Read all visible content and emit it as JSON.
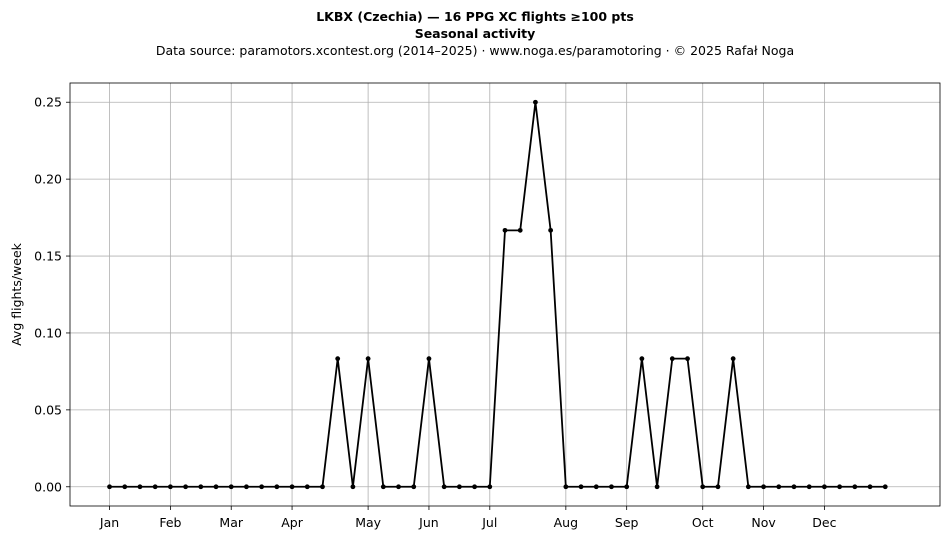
{
  "title": "LKBX (Czechia)  —  16 PPG XC flights ≥100 pts",
  "subtitle": "Seasonal activity",
  "source_note": "Data source: paramotors.xcontest.org (2014–2025)  ·  www.noga.es/paramotoring  ·  © 2025 Rafał Noga",
  "chart_data": {
    "type": "line",
    "title": "LKBX (Czechia)  —  16 PPG XC flights ≥100 pts",
    "subtitle": "Seasonal activity",
    "xlabel": "",
    "ylabel": "Avg flights/week",
    "x_unit": "week of year",
    "xlim": [
      -2.6,
      54.6
    ],
    "ylim": [
      -0.0125,
      0.2625
    ],
    "grid": true,
    "month_ticks": [
      {
        "label": "Jan",
        "week": 0
      },
      {
        "label": "Feb",
        "week": 4
      },
      {
        "label": "Mar",
        "week": 8
      },
      {
        "label": "Apr",
        "week": 12
      },
      {
        "label": "May",
        "week": 17
      },
      {
        "label": "Jun",
        "week": 21
      },
      {
        "label": "Jul",
        "week": 25
      },
      {
        "label": "Aug",
        "week": 30
      },
      {
        "label": "Sep",
        "week": 34
      },
      {
        "label": "Oct",
        "week": 39
      },
      {
        "label": "Nov",
        "week": 43
      },
      {
        "label": "Dec",
        "week": 47
      }
    ],
    "y_ticks": [
      "0.00",
      "0.05",
      "0.10",
      "0.15",
      "0.20",
      "0.25"
    ],
    "y_tick_values": [
      0,
      0.05,
      0.1,
      0.15,
      0.2,
      0.25
    ],
    "series": [
      {
        "color": "#000000",
        "x": [
          0,
          1,
          2,
          3,
          4,
          5,
          6,
          7,
          8,
          9,
          10,
          11,
          12,
          13,
          14,
          15,
          16,
          17,
          18,
          19,
          20,
          21,
          22,
          23,
          24,
          25,
          26,
          27,
          28,
          29,
          30,
          31,
          32,
          33,
          34,
          35,
          36,
          37,
          38,
          39,
          40,
          41,
          42,
          43,
          44,
          45,
          46,
          47,
          48,
          49,
          50,
          51
        ],
        "values": [
          0,
          0,
          0,
          0,
          0,
          0,
          0,
          0,
          0,
          0,
          0,
          0,
          0,
          0,
          0,
          0.0833,
          0,
          0.0833,
          0,
          0,
          0,
          0.0833,
          0,
          0,
          0,
          0,
          0.1667,
          0.1667,
          0.25,
          0.1667,
          0,
          0,
          0,
          0,
          0,
          0.0833,
          0,
          0.0833,
          0.0833,
          0,
          0,
          0.0833,
          0,
          0,
          0,
          0,
          0,
          0,
          0,
          0,
          0,
          0
        ]
      }
    ]
  }
}
